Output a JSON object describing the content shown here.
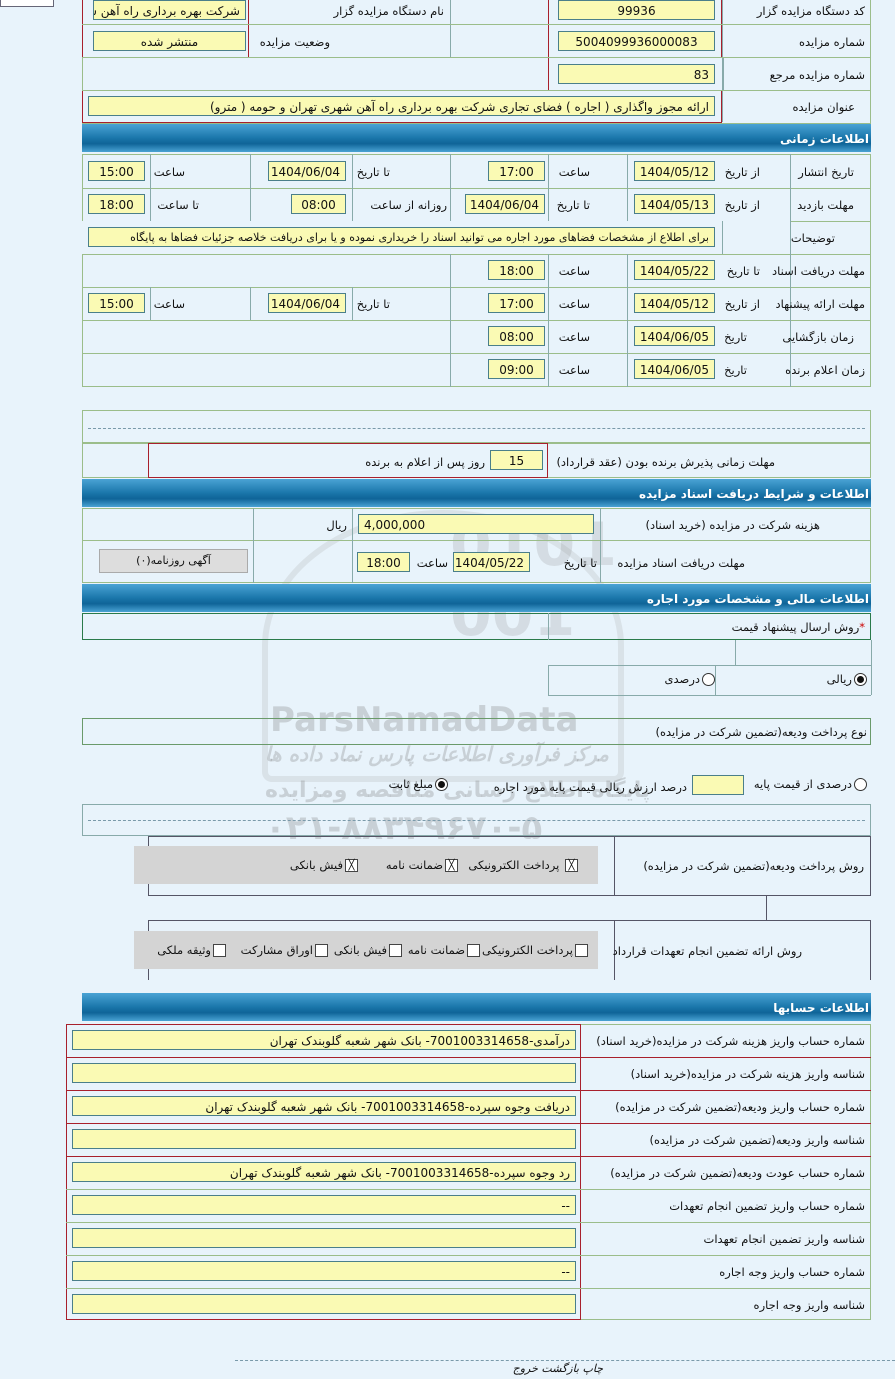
{
  "general": {
    "org_code_label": "کد دستگاه مزایده گزار",
    "org_code": "99936",
    "org_name_label": "نام دستگاه مزایده گزار",
    "org_name": "شرکت بهره برداری راه آهن شهری تهران",
    "auction_no_label": "شماره مزایده",
    "auction_no": "5004099936000083",
    "status_label": "وضعیت مزایده",
    "status": "منتشر شده",
    "ref_no_label": "شماره مزایده مرجع",
    "ref_no": "83",
    "title_label": "عنوان مزایده",
    "title": "ارائه مجوز واگذاری ( اجاره ) فضای تجاری شرکت بهره برداری راه آهن شهری تهران و حومه ( مترو)"
  },
  "timing": {
    "header": "اطلاعات زمانی",
    "publish": {
      "label": "تاریخ انتشار",
      "from_label": "از تاریخ",
      "from": "1404/05/12",
      "time_label": "ساعت",
      "time": "17:00",
      "to_label": "تا تاریخ",
      "to": "1404/06/04",
      "time2_label": "ساعت",
      "time2": "15:00"
    },
    "visit": {
      "label": "مهلت بازدید",
      "from_label": "از تاریخ",
      "from": "1404/05/13",
      "to_label": "تا تاریخ",
      "to": "1404/06/04",
      "daily_label": "روزانه از ساعت",
      "daily_from": "08:00",
      "to_time_label": "تا ساعت",
      "to_time": "18:00"
    },
    "desc": {
      "label": "توضیحات",
      "value": "برای اطلاع از مشخصات فضاهای مورد اجاره می توانید اسناد را خریداری نموده و یا برای دریافت خلاصه جزئیات فضاها به پایگاه"
    },
    "docs": {
      "label": "مهلت دریافت اسناد",
      "to_label": "تا تاریخ",
      "to": "1404/05/22",
      "time_label": "ساعت",
      "time": "18:00"
    },
    "offer": {
      "label": "مهلت ارائه پیشنهاد",
      "from_label": "از تاریخ",
      "from": "1404/05/12",
      "time_label": "ساعت",
      "time": "17:00",
      "to_label": "تا تاریخ",
      "to": "1404/06/04",
      "time2_label": "ساعت",
      "time2": "15:00"
    },
    "opening": {
      "label": "زمان بازگشایی",
      "date_label": "تاریخ",
      "date": "1404/06/05",
      "time_label": "ساعت",
      "time": "08:00"
    },
    "winner": {
      "label": "زمان اعلام برنده",
      "date_label": "تاریخ",
      "date": "1404/06/05",
      "time_label": "ساعت",
      "time": "09:00"
    },
    "accept": {
      "label": "مهلت زمانی پذیرش برنده بودن (عقد قرارداد)",
      "days": "15",
      "suffix": "روز پس از اعلام به برنده"
    }
  },
  "docs": {
    "header": "اطلاعات و شرایط دریافت اسناد مزایده",
    "fee_label": "هزینه شرکت در مزایده (خرید اسناد)",
    "fee": "4,000,000",
    "currency": "ریال",
    "deadline_label": "مهلت دریافت اسناد مزایده",
    "to_label": "تا تاریخ",
    "to": "1404/05/22",
    "time_label": "ساعت",
    "time": "18:00",
    "newspaper_button": "آگهی روزنامه(۰)"
  },
  "financial": {
    "header": "اطلاعات مالی و مشخصات مورد اجاره",
    "method_label": "روش ارسال پیشنهاد قیمت",
    "required_mark": "*",
    "rial_label": "ریالی",
    "rial_selected": true,
    "percent_label": "درصدی",
    "percent_selected": false,
    "deposit_type_label": "نوع پرداخت ودیعه(تضمین شرکت در مزایده)",
    "dep_percent_label": "درصدی از قیمت پایه",
    "dep_percent_selected": false,
    "dep_percent_value": "",
    "dep_percent_suffix": "درصد ارزش ریالی قیمت پایه مورد اجاره",
    "fixed_label": "مبلغ ثابت",
    "fixed_selected": true,
    "deposit_method_label": "روش پرداخت ودیعه(تضمین شرکت در مزایده)",
    "deposit_methods": [
      {
        "label": "پرداخت الکترونیکی",
        "checked": true
      },
      {
        "label": "ضمانت نامه",
        "checked": true
      },
      {
        "label": "فیش بانکی",
        "checked": true
      }
    ],
    "guarantee_label": "روش ارائه تضمین انجام تعهدات قرارداد",
    "guarantee_methods": [
      {
        "label": "پرداخت الکترونیکی",
        "checked": false
      },
      {
        "label": "ضمانت نامه",
        "checked": false
      },
      {
        "label": "فیش بانکی",
        "checked": false
      },
      {
        "label": "اوراق مشارکت",
        "checked": false
      },
      {
        "label": "وثیقه ملکی",
        "checked": false
      }
    ]
  },
  "accounts": {
    "header": "اطلاعات حسابها",
    "rows": [
      {
        "label": "شماره حساب واریز هزینه شرکت در مزایده(خرید اسناد)",
        "value": "درآمدی-7001003314658- بانک شهر شعبه گلوبندک تهران"
      },
      {
        "label": "شناسه واریز هزینه شرکت در مزایده(خرید اسناد)",
        "value": ""
      },
      {
        "label": "شماره حساب واریز ودیعه(تضمین شرکت در مزایده)",
        "value": "دریافت وجوه سپرده-7001003314658- بانک شهر شعبه گلوبندک تهران"
      },
      {
        "label": "شناسه واریز ودیعه(تضمین شرکت در مزایده)",
        "value": ""
      },
      {
        "label": "شماره حساب عودت ودیعه(تضمین شرکت در مزایده)",
        "value": "رد وجوه سپرده-7001003314658- بانک شهر شعبه گلوبندک تهران"
      },
      {
        "label": "شماره حساب واریز تضمین انجام تعهدات",
        "value": "--"
      },
      {
        "label": "شناسه واریز تضمین انجام تعهدات",
        "value": ""
      },
      {
        "label": "شماره حساب واریز وجه اجاره",
        "value": "--"
      },
      {
        "label": "شناسه واریز وجه اجاره",
        "value": ""
      }
    ]
  },
  "footer": {
    "print": "چاپ",
    "back": "بازگشت",
    "exit": "خروج"
  },
  "watermark": {
    "brand": "ParsNamadData",
    "line1": "مرکز فرآوری اطلاعات پارس نماد داده ها",
    "line2": "پایگاه اطلاع رسانی مناقصه ومزایده",
    "phone": "۰۲۱-۸۸۳۴۹۶۷۰-۵"
  }
}
